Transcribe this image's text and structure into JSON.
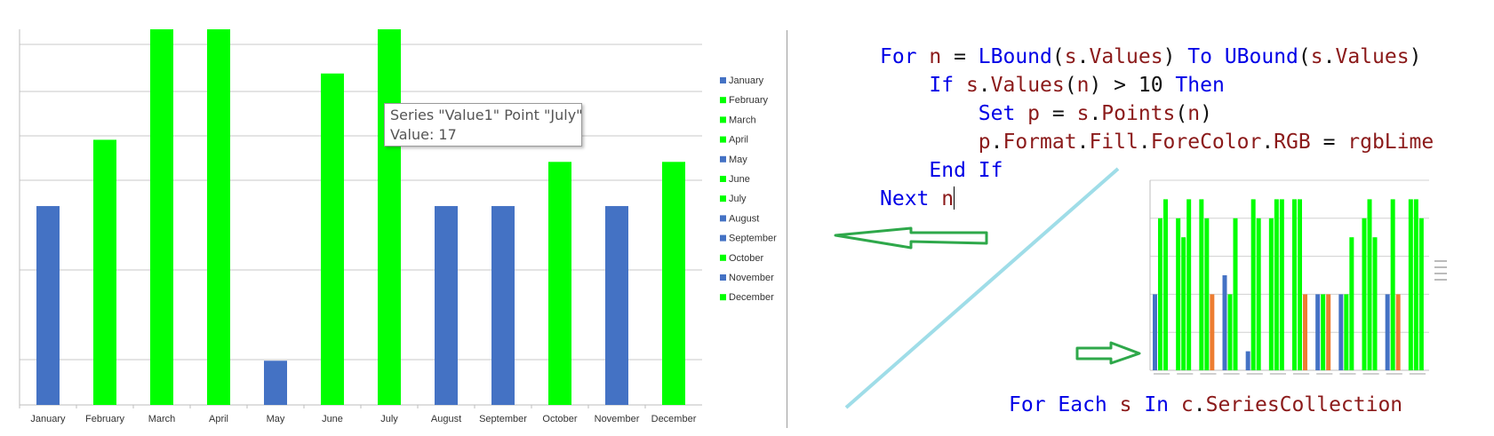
{
  "chart_data": [
    {
      "type": "bar",
      "categories": [
        "January",
        "February",
        "March",
        "April",
        "May",
        "June",
        "July",
        "August",
        "September",
        "October",
        "November",
        "December"
      ],
      "series": [
        {
          "values": [
            9,
            12,
            17,
            17,
            2,
            15,
            17,
            9,
            9,
            11,
            9,
            11
          ]
        }
      ],
      "point_colors": [
        "#4472c4",
        "#00ff00",
        "#00ff00",
        "#00ff00",
        "#4472c4",
        "#00ff00",
        "#00ff00",
        "#4472c4",
        "#4472c4",
        "#00ff00",
        "#4472c4",
        "#00ff00"
      ],
      "legend": {
        "entries": [
          "January",
          "February",
          "March",
          "April",
          "May",
          "June",
          "July",
          "August",
          "September",
          "October",
          "November",
          "December"
        ],
        "position": "right"
      },
      "ylim": [
        0,
        17
      ],
      "grid": true,
      "tooltip": {
        "line1": "Series \"Value1\" Point \"July\"",
        "line2": "Value: 17"
      }
    },
    {
      "type": "bar",
      "categories": [
        "January",
        "February",
        "March",
        "April",
        "May",
        "June",
        "July",
        "August",
        "September",
        "October",
        "November",
        "December"
      ],
      "series": [
        {
          "values": [
            4,
            8,
            9,
            5,
            1,
            8,
            9,
            4,
            4,
            8,
            4,
            9
          ]
        },
        {
          "values": [
            8,
            7,
            8,
            4,
            9,
            9,
            9,
            4,
            4,
            9,
            9,
            9
          ]
        },
        {
          "values": [
            9,
            9,
            4,
            8,
            8,
            9,
            4,
            4,
            7,
            7,
            4,
            8
          ]
        },
        {
          "values": [
            0,
            0,
            0,
            0,
            0,
            0,
            0,
            0,
            0,
            0,
            0,
            0
          ]
        }
      ],
      "ylim": [
        0,
        10
      ],
      "grid": true,
      "legend": {
        "position": "right"
      }
    }
  ],
  "code": {
    "lines": [
      [
        {
          "t": "For ",
          "c": "kw"
        },
        {
          "t": "n",
          "c": "fn"
        },
        {
          "t": " = ",
          "c": "txt"
        },
        {
          "t": "LBound",
          "c": "kw"
        },
        {
          "t": "(",
          "c": "txt"
        },
        {
          "t": "s",
          "c": "fn"
        },
        {
          "t": ".",
          "c": "txt"
        },
        {
          "t": "Values",
          "c": "fn"
        },
        {
          "t": ") ",
          "c": "txt"
        },
        {
          "t": "To ",
          "c": "kw"
        },
        {
          "t": "UBound",
          "c": "kw"
        },
        {
          "t": "(",
          "c": "txt"
        },
        {
          "t": "s",
          "c": "fn"
        },
        {
          "t": ".",
          "c": "txt"
        },
        {
          "t": "Values",
          "c": "fn"
        },
        {
          "t": ")",
          "c": "txt"
        }
      ],
      [
        {
          "t": "    If ",
          "c": "kw"
        },
        {
          "t": "s",
          "c": "fn"
        },
        {
          "t": ".",
          "c": "txt"
        },
        {
          "t": "Values",
          "c": "fn"
        },
        {
          "t": "(",
          "c": "txt"
        },
        {
          "t": "n",
          "c": "fn"
        },
        {
          "t": ") > 10 ",
          "c": "txt"
        },
        {
          "t": "Then",
          "c": "kw"
        }
      ],
      [
        {
          "t": "        Set ",
          "c": "kw"
        },
        {
          "t": "p",
          "c": "fn"
        },
        {
          "t": " = ",
          "c": "txt"
        },
        {
          "t": "s",
          "c": "fn"
        },
        {
          "t": ".",
          "c": "txt"
        },
        {
          "t": "Points",
          "c": "fn"
        },
        {
          "t": "(",
          "c": "txt"
        },
        {
          "t": "n",
          "c": "fn"
        },
        {
          "t": ")",
          "c": "txt"
        }
      ],
      [
        {
          "t": "        p",
          "c": "fn"
        },
        {
          "t": ".",
          "c": "txt"
        },
        {
          "t": "Format",
          "c": "fn"
        },
        {
          "t": ".",
          "c": "txt"
        },
        {
          "t": "Fill",
          "c": "fn"
        },
        {
          "t": ".",
          "c": "txt"
        },
        {
          "t": "ForeColor",
          "c": "fn"
        },
        {
          "t": ".",
          "c": "txt"
        },
        {
          "t": "RGB",
          "c": "fn"
        },
        {
          "t": " = ",
          "c": "txt"
        },
        {
          "t": "rgbLime",
          "c": "fn"
        }
      ],
      [
        {
          "t": "    End If",
          "c": "kw"
        }
      ],
      [
        {
          "t": "Next ",
          "c": "kw"
        },
        {
          "t": "n",
          "c": "fn"
        }
      ]
    ],
    "bottom_line": [
      {
        "t": "For Each ",
        "c": "kw"
      },
      {
        "t": "s",
        "c": "fn"
      },
      {
        "t": " In ",
        "c": "kw"
      },
      {
        "t": "c",
        "c": "fn"
      },
      {
        "t": ".",
        "c": "txt"
      },
      {
        "t": "SeriesCollection",
        "c": "fn"
      }
    ]
  },
  "colors": {
    "blue": "#4472c4",
    "lime": "#00ff00",
    "orange": "#ed7d31",
    "gray": "#a5a5a5",
    "annotation_line": "#9fdde8",
    "arrow": "#2ea84a"
  }
}
